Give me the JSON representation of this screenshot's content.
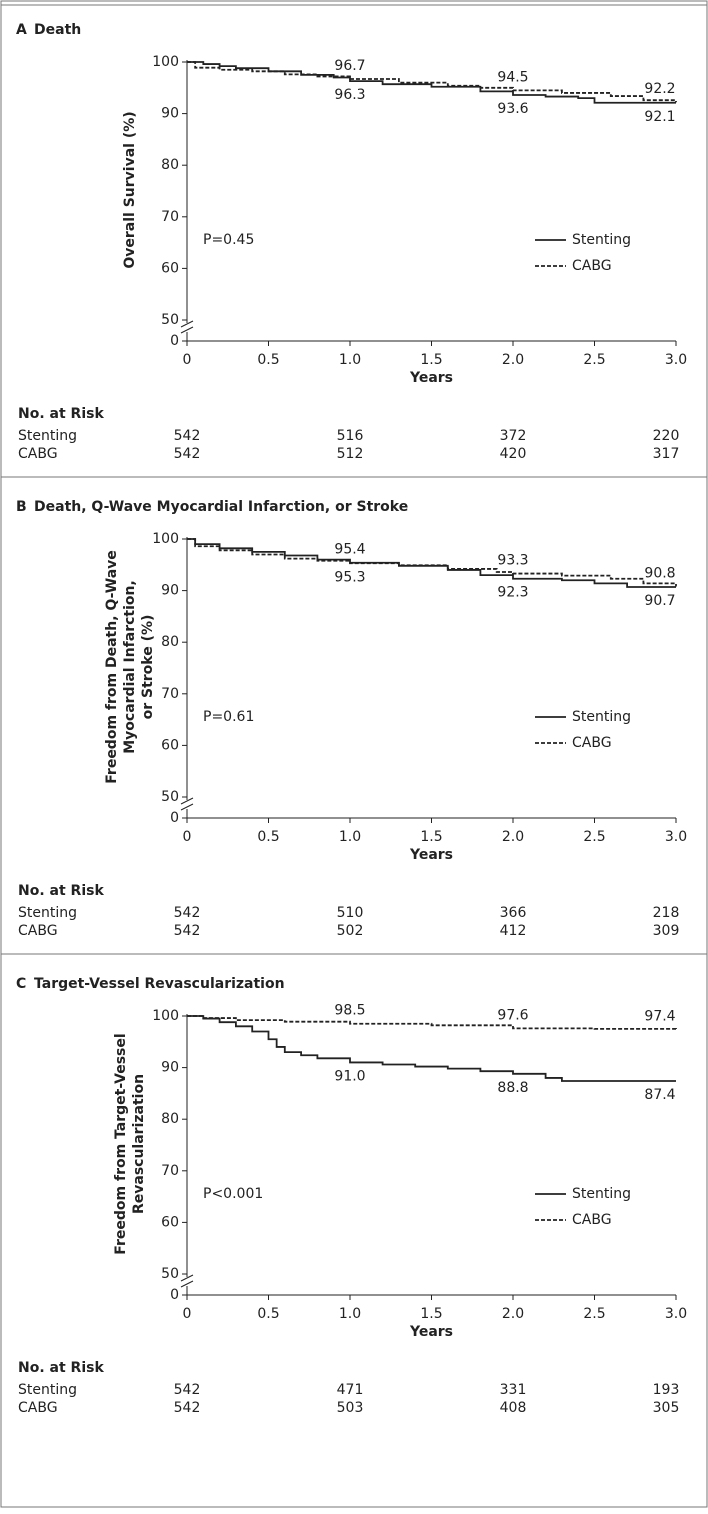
{
  "chart_data": [
    {
      "type": "step",
      "panel": "A",
      "title": "Death",
      "ylabel": [
        "Overall Survival (%)"
      ],
      "xlabel": "Years",
      "xlim": [
        0,
        3
      ],
      "xticks": [
        0,
        0.5,
        {
          "value": 1,
          "label": "1.0"
        },
        1.5,
        {
          "value": 2,
          "label": "2.0"
        },
        2.5,
        {
          "value": 3,
          "label": "3.0"
        }
      ],
      "ylim": [
        0,
        100
      ],
      "y_break": [
        0,
        50
      ],
      "yticks": [
        0,
        50,
        60,
        70,
        80,
        90,
        100
      ],
      "annotation": "P=0.45",
      "legend": "center right",
      "estimate_years": [
        1,
        2,
        3
      ],
      "series": [
        {
          "name": "Stenting",
          "color": "#222222",
          "dash": "solid",
          "x": [
            0,
            0.1,
            0.2,
            0.3,
            0.5,
            0.7,
            0.9,
            1.0,
            1.2,
            1.5,
            1.8,
            2.0,
            2.2,
            2.4,
            2.5,
            2.7,
            3.0
          ],
          "y": [
            100,
            99.6,
            99.2,
            98.8,
            98.2,
            97.5,
            97.0,
            96.3,
            95.7,
            95.2,
            94.3,
            93.6,
            93.3,
            93.0,
            92.1,
            92.1,
            92.1
          ],
          "estimates": [
            96.3,
            93.6,
            92.1
          ]
        },
        {
          "name": "CABG",
          "color": "#222222",
          "dash": "dashed",
          "x": [
            0,
            0.05,
            0.2,
            0.4,
            0.6,
            0.8,
            1.0,
            1.3,
            1.6,
            1.8,
            2.0,
            2.3,
            2.6,
            2.8,
            3.0
          ],
          "y": [
            100,
            98.9,
            98.5,
            98.2,
            97.6,
            97.2,
            96.7,
            96.0,
            95.4,
            95.0,
            94.5,
            94.0,
            93.4,
            92.6,
            92.2
          ],
          "estimates": [
            96.7,
            94.5,
            92.2
          ]
        }
      ],
      "risk_table": {
        "title": "No. at Risk",
        "x": [
          0,
          1,
          2,
          3
        ],
        "rows": [
          {
            "name": "Stenting",
            "values": [
              542,
              516,
              372,
              220
            ]
          },
          {
            "name": "CABG",
            "values": [
              542,
              512,
              420,
              317
            ]
          }
        ]
      }
    },
    {
      "type": "step",
      "panel": "B",
      "title": "Death, Q-Wave Myocardial Infarction, or Stroke",
      "ylabel": [
        "Freedom from Death, Q-Wave",
        "Myocardial Infarction,",
        "or Stroke (%)"
      ],
      "xlabel": "Years",
      "xlim": [
        0,
        3
      ],
      "xticks": [
        0,
        0.5,
        {
          "value": 1,
          "label": "1.0"
        },
        1.5,
        {
          "value": 2,
          "label": "2.0"
        },
        2.5,
        {
          "value": 3,
          "label": "3.0"
        }
      ],
      "ylim": [
        0,
        100
      ],
      "y_break": [
        0,
        50
      ],
      "yticks": [
        0,
        50,
        60,
        70,
        80,
        90,
        100
      ],
      "annotation": "P=0.61",
      "legend": "center right",
      "estimate_years": [
        1,
        2,
        3
      ],
      "series": [
        {
          "name": "Stenting",
          "color": "#222222",
          "dash": "solid",
          "x": [
            0,
            0.05,
            0.2,
            0.4,
            0.6,
            0.8,
            1.0,
            1.3,
            1.6,
            1.8,
            2.0,
            2.3,
            2.5,
            2.7,
            3.0
          ],
          "y": [
            100,
            99,
            98.2,
            97.5,
            96.8,
            96.0,
            95.4,
            94.8,
            94.0,
            93.0,
            92.3,
            92.0,
            91.4,
            90.7,
            90.7
          ],
          "estimates": [
            95.4,
            92.3,
            90.7
          ]
        },
        {
          "name": "CABG",
          "color": "#222222",
          "dash": "dashed",
          "x": [
            0,
            0.05,
            0.2,
            0.4,
            0.6,
            0.8,
            1.0,
            1.3,
            1.6,
            1.9,
            2.0,
            2.3,
            2.6,
            2.8,
            3.0
          ],
          "y": [
            100,
            98.6,
            97.8,
            97.0,
            96.2,
            95.8,
            95.3,
            94.9,
            94.2,
            93.6,
            93.3,
            92.9,
            92.3,
            91.4,
            90.8
          ],
          "estimates": [
            95.3,
            93.3,
            90.8
          ]
        }
      ],
      "risk_table": {
        "title": "No. at Risk",
        "x": [
          0,
          1,
          2,
          3
        ],
        "rows": [
          {
            "name": "Stenting",
            "values": [
              542,
              510,
              366,
              218
            ]
          },
          {
            "name": "CABG",
            "values": [
              542,
              502,
              412,
              309
            ]
          }
        ]
      }
    },
    {
      "type": "step",
      "panel": "C",
      "title": "Target-Vessel Revascularization",
      "ylabel": [
        "Freedom from Target-Vessel",
        "Revascularization"
      ],
      "xlabel": "Years",
      "xlim": [
        0,
        3
      ],
      "xticks": [
        0,
        0.5,
        {
          "value": 1,
          "label": "1.0"
        },
        1.5,
        {
          "value": 2,
          "label": "2.0"
        },
        2.5,
        {
          "value": 3,
          "label": "3.0"
        }
      ],
      "ylim": [
        0,
        100
      ],
      "y_break": [
        0,
        50
      ],
      "yticks": [
        0,
        50,
        60,
        70,
        80,
        90,
        100
      ],
      "annotation": "P<0.001",
      "legend": "center right",
      "estimate_years": [
        1,
        2,
        3
      ],
      "series": [
        {
          "name": "Stenting",
          "color": "#222222",
          "dash": "solid",
          "x": [
            0,
            0.1,
            0.2,
            0.3,
            0.4,
            0.5,
            0.55,
            0.6,
            0.7,
            0.8,
            1.0,
            1.2,
            1.4,
            1.6,
            1.8,
            2.0,
            2.2,
            2.3,
            3.0
          ],
          "y": [
            100,
            99.5,
            98.8,
            98,
            97,
            95.5,
            94,
            93,
            92.4,
            91.8,
            91.0,
            90.6,
            90.2,
            89.8,
            89.3,
            88.8,
            88,
            87.4,
            87.4
          ],
          "estimates": [
            {
              "value": 91,
              "label": "91.0"
            },
            88.8,
            87.4
          ]
        },
        {
          "name": "CABG",
          "color": "#222222",
          "dash": "dashed",
          "x": [
            0,
            0.1,
            0.3,
            0.6,
            1.0,
            1.5,
            2.0,
            2.5,
            3.0
          ],
          "y": [
            100,
            99.6,
            99.2,
            98.9,
            98.5,
            98.2,
            97.6,
            97.5,
            97.4
          ],
          "estimates": [
            98.5,
            97.6,
            97.4
          ]
        }
      ],
      "risk_table": {
        "title": "No. at Risk",
        "x": [
          0,
          1,
          2,
          3
        ],
        "rows": [
          {
            "name": "Stenting",
            "values": [
              542,
              471,
              331,
              193
            ]
          },
          {
            "name": "CABG",
            "values": [
              542,
              503,
              408,
              305
            ]
          }
        ]
      }
    }
  ]
}
